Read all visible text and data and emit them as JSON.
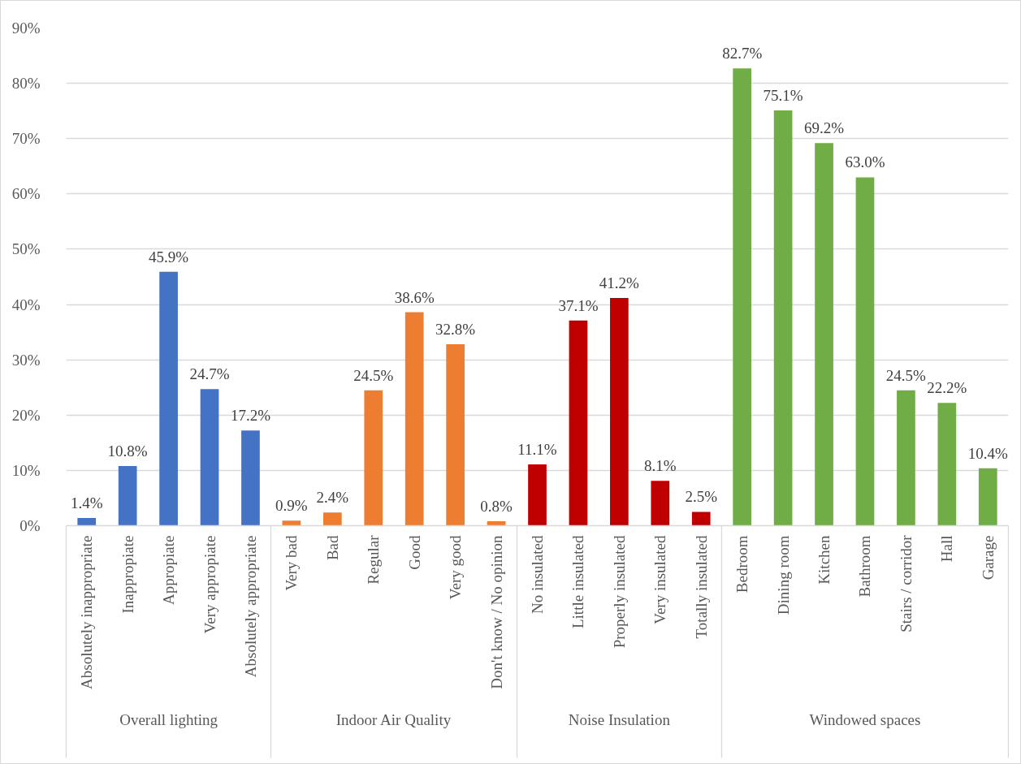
{
  "chart_data": {
    "type": "bar",
    "categories": [
      "Absolutely inappropriate",
      "Inappropiate",
      "Appropiate",
      "Very appropiate",
      "Absolutely appropriate",
      "Very bad",
      "Bad",
      "Regular",
      "Good",
      "Very good",
      "Don't know / No opinion",
      "No insulated",
      "Little insulated",
      "Properly insulated",
      "Very insulated",
      "Totally insulated",
      "Bedroom",
      "Dining room",
      "Kitchen",
      "Bathroom",
      "Stairs / corridor",
      "Hall",
      "Garage"
    ],
    "series": [
      {
        "color": "#4472c4",
        "values": [
          1.4,
          10.8,
          45.9,
          24.7,
          17.2,
          null,
          null,
          null,
          null,
          null,
          null,
          null,
          null,
          null,
          null,
          null,
          null,
          null,
          null,
          null,
          null,
          null,
          null
        ],
        "value_labels": [
          "1.4%",
          "10.8%",
          "45.9%",
          "24.7%",
          "17.2%",
          null,
          null,
          null,
          null,
          null,
          null,
          null,
          null,
          null,
          null,
          null,
          null,
          null,
          null,
          null,
          null,
          null,
          null
        ]
      },
      {
        "color": "#ed7d31",
        "values": [
          null,
          null,
          null,
          null,
          null,
          0.9,
          2.4,
          24.5,
          38.6,
          32.8,
          0.8,
          null,
          null,
          null,
          null,
          null,
          null,
          null,
          null,
          null,
          null,
          null,
          null
        ],
        "value_labels": [
          null,
          null,
          null,
          null,
          null,
          "0.9%",
          "2.4%",
          "24.5%",
          "38.6%",
          "32.8%",
          "0.8%",
          null,
          null,
          null,
          null,
          null,
          null,
          null,
          null,
          null,
          null,
          null,
          null
        ]
      },
      {
        "color": "#c00000",
        "values": [
          null,
          null,
          null,
          null,
          null,
          null,
          null,
          null,
          null,
          null,
          null,
          11.1,
          37.1,
          41.2,
          8.1,
          2.5,
          null,
          null,
          null,
          null,
          null,
          null,
          null
        ],
        "value_labels": [
          null,
          null,
          null,
          null,
          null,
          null,
          null,
          null,
          null,
          null,
          null,
          "11.1%",
          "37.1%",
          "41.2%",
          "8.1%",
          "2.5%",
          null,
          null,
          null,
          null,
          null,
          null,
          null
        ]
      },
      {
        "color": "#70ad47",
        "values": [
          null,
          null,
          null,
          null,
          null,
          null,
          null,
          null,
          null,
          null,
          null,
          null,
          null,
          null,
          null,
          null,
          82.7,
          75.1,
          69.2,
          63.0,
          24.5,
          22.2,
          10.4
        ],
        "value_labels": [
          null,
          null,
          null,
          null,
          null,
          null,
          null,
          null,
          null,
          null,
          null,
          null,
          null,
          null,
          null,
          null,
          "82.7%",
          "75.1%",
          "69.2%",
          "63.0%",
          "24.5%",
          "22.2%",
          "10.4%"
        ]
      }
    ],
    "annotations": [
      "Overall lighting",
      "Indoor Air Quality",
      "Noise Insulation",
      "Windowed spaces"
    ],
    "ylim": [
      0,
      90
    ],
    "yticks": [
      {
        "value": 0,
        "label": "0%"
      },
      {
        "value": 10,
        "label": "10%"
      },
      {
        "value": 20,
        "label": "20%"
      },
      {
        "value": 30,
        "label": "30%"
      },
      {
        "value": 40,
        "label": "40%"
      },
      {
        "value": 50,
        "label": "50%"
      },
      {
        "value": 60,
        "label": "60%"
      },
      {
        "value": 70,
        "label": "70%"
      },
      {
        "value": 80,
        "label": "80%"
      },
      {
        "value": 90,
        "label": "90%"
      }
    ],
    "grid": "y"
  }
}
